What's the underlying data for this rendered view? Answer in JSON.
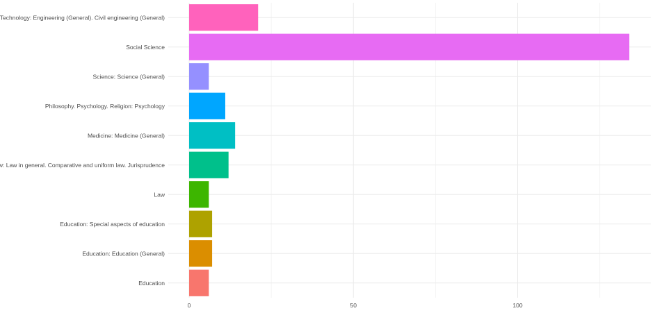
{
  "chart_data": {
    "type": "bar",
    "orientation": "horizontal",
    "title": "",
    "xlabel": "",
    "ylabel": "",
    "categories": [
      "Education",
      "Education: Education (General)",
      "Education: Special aspects of education",
      "Law",
      "Law: Law in general. Comparative and uniform law. Jurisprudence",
      "Medicine: Medicine (General)",
      "Philosophy. Psychology. Religion: Psychology",
      "Science: Science (General)",
      "Social Science",
      "Technology: Engineering (General). Civil engineering (General)"
    ],
    "values": [
      6,
      7,
      7,
      6,
      12,
      14,
      11,
      6,
      134,
      21
    ],
    "colors": [
      "#F8766D",
      "#DB8E00",
      "#AEA200",
      "#3DB600",
      "#00C08B",
      "#00BFC4",
      "#00A6FF",
      "#9590FF",
      "#E76BF3",
      "#FF62BC"
    ],
    "xlim": [
      0,
      140
    ],
    "xticks": [
      "0",
      "50",
      "100"
    ],
    "grid": true,
    "legend": "none"
  }
}
